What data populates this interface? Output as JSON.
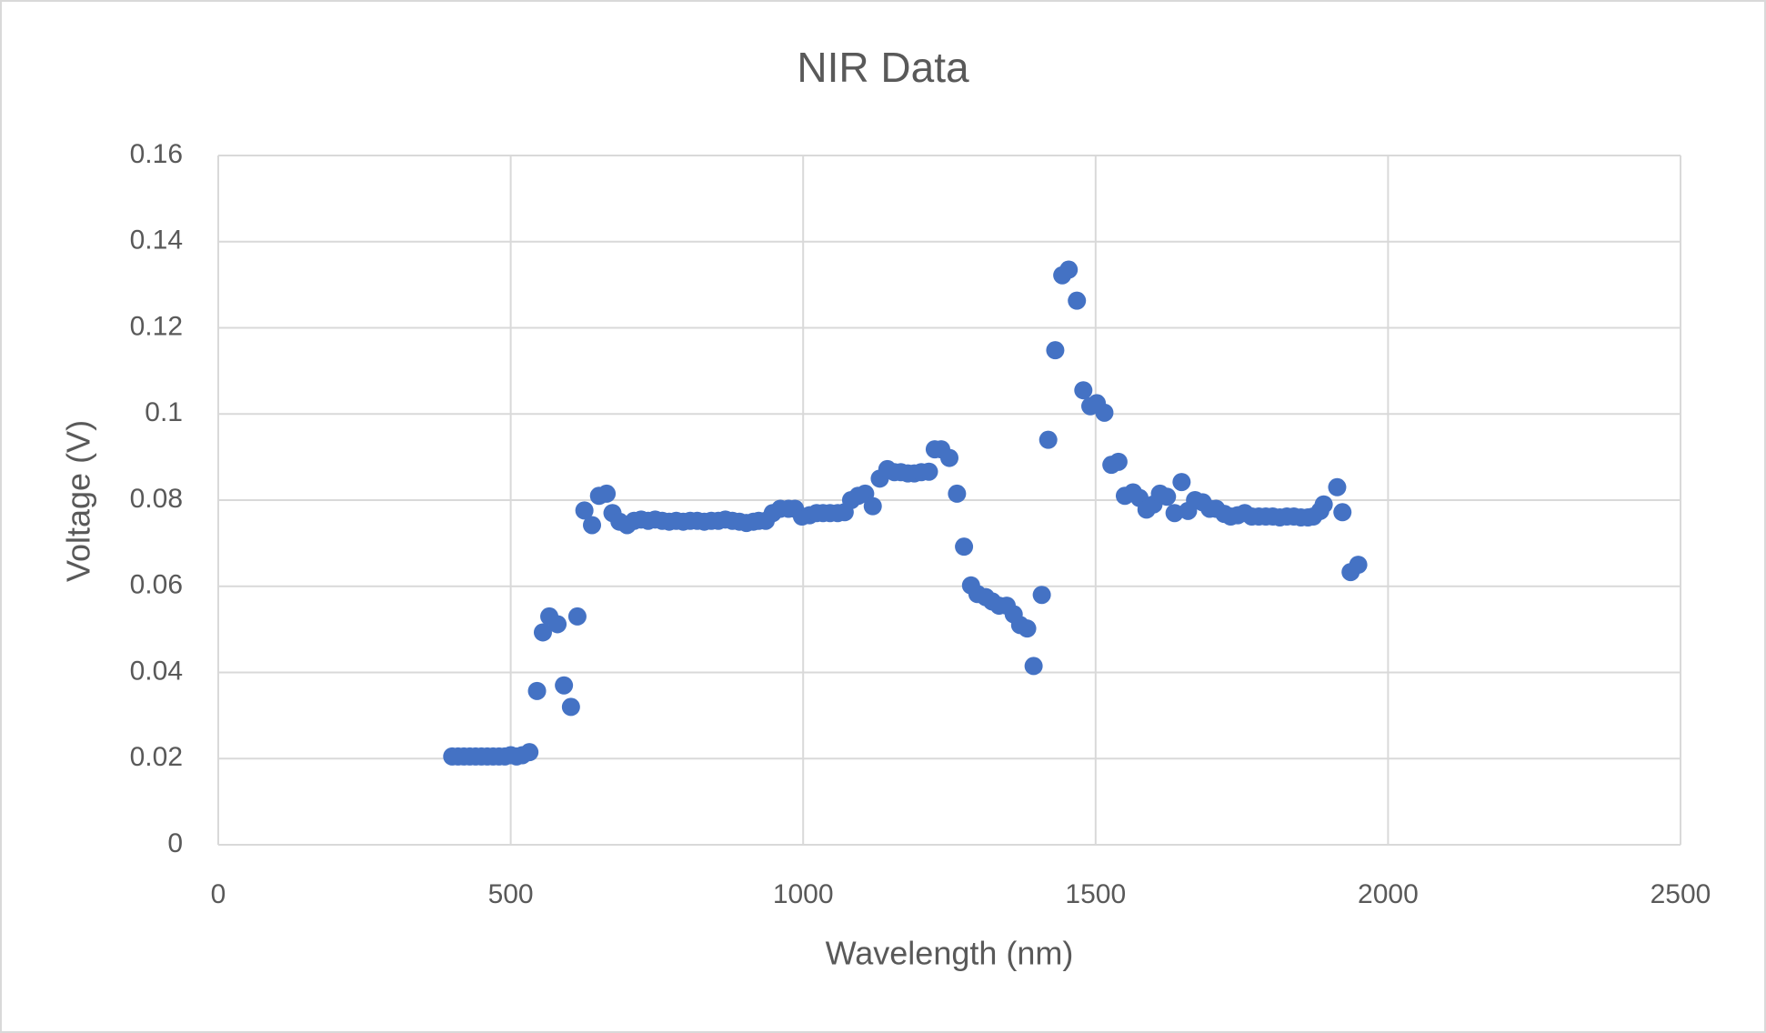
{
  "chart_data": {
    "type": "scatter",
    "title": "NIR Data",
    "x_label": "Wavelength (nm)",
    "y_label": "Voltage (V)",
    "color": "#4472c4",
    "grid": true,
    "xlim": [
      0,
      2500
    ],
    "xticks": [
      0,
      500,
      1000,
      1500,
      2000,
      2500
    ],
    "ylim": [
      0,
      0.16
    ],
    "yticks": [
      0,
      0.02,
      0.04,
      0.06,
      0.08,
      0.1,
      0.12,
      0.14,
      0.16
    ],
    "x": [
      400,
      410,
      420,
      430,
      440,
      450,
      460,
      470,
      480,
      490,
      500,
      510,
      520,
      532,
      545,
      555,
      566,
      580,
      591,
      603,
      614,
      626,
      639,
      651,
      664,
      674,
      686,
      699,
      711,
      723,
      735,
      747,
      759,
      771,
      783,
      795,
      807,
      819,
      831,
      843,
      855,
      867,
      879,
      891,
      903,
      915,
      924,
      936,
      948,
      961,
      975,
      986,
      998,
      1011,
      1023,
      1034,
      1046,
      1059,
      1071,
      1082,
      1094,
      1106,
      1119,
      1131,
      1144,
      1156,
      1167,
      1179,
      1190,
      1202,
      1215,
      1225,
      1236,
      1250,
      1263,
      1275,
      1287,
      1298,
      1312,
      1323,
      1335,
      1348,
      1360,
      1371,
      1383,
      1394,
      1408,
      1419,
      1431,
      1443,
      1454,
      1468,
      1479,
      1491,
      1502,
      1515,
      1527,
      1539,
      1550,
      1564,
      1575,
      1587,
      1599,
      1610,
      1622,
      1635,
      1647,
      1658,
      1670,
      1683,
      1695,
      1706,
      1720,
      1731,
      1743,
      1755,
      1767,
      1779,
      1791,
      1803,
      1815,
      1827,
      1839,
      1851,
      1863,
      1872,
      1884,
      1890,
      1913,
      1922,
      1936,
      1949
    ],
    "values": [
      0.0205,
      0.0205,
      0.0205,
      0.0205,
      0.0205,
      0.0205,
      0.0205,
      0.0205,
      0.0205,
      0.0205,
      0.0208,
      0.0205,
      0.0208,
      0.0215,
      0.0357,
      0.0493,
      0.053,
      0.0512,
      0.037,
      0.032,
      0.053,
      0.0776,
      0.0742,
      0.081,
      0.0815,
      0.077,
      0.075,
      0.0742,
      0.0752,
      0.0755,
      0.0752,
      0.0755,
      0.0752,
      0.075,
      0.0752,
      0.075,
      0.0752,
      0.0752,
      0.075,
      0.0752,
      0.0752,
      0.0755,
      0.0752,
      0.075,
      0.0747,
      0.075,
      0.0752,
      0.0752,
      0.077,
      0.078,
      0.078,
      0.078,
      0.0762,
      0.0765,
      0.077,
      0.077,
      0.077,
      0.077,
      0.0772,
      0.08,
      0.081,
      0.0815,
      0.0786,
      0.085,
      0.0872,
      0.0865,
      0.0865,
      0.0862,
      0.0862,
      0.0865,
      0.0866,
      0.0918,
      0.0918,
      0.0898,
      0.0815,
      0.0692,
      0.0602,
      0.0582,
      0.0575,
      0.0565,
      0.0555,
      0.0555,
      0.0535,
      0.051,
      0.0502,
      0.0415,
      0.058,
      0.094,
      0.1148,
      0.1322,
      0.1335,
      0.1263,
      0.1055,
      0.1018,
      0.1025,
      0.1003,
      0.0882,
      0.0889,
      0.081,
      0.0818,
      0.0805,
      0.0778,
      0.079,
      0.0815,
      0.0808,
      0.077,
      0.0842,
      0.0775,
      0.08,
      0.0795,
      0.078,
      0.078,
      0.0768,
      0.0762,
      0.0765,
      0.077,
      0.0762,
      0.0762,
      0.0762,
      0.0762,
      0.076,
      0.0762,
      0.0762,
      0.076,
      0.076,
      0.0762,
      0.0775,
      0.079,
      0.083,
      0.0772,
      0.0633,
      0.065
    ]
  }
}
